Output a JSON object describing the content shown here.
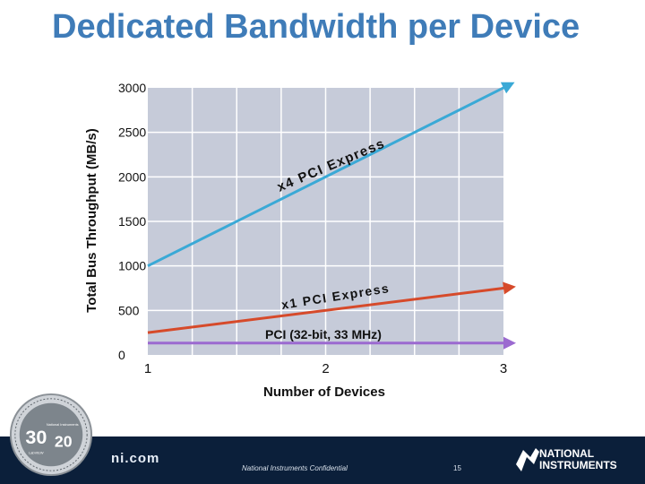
{
  "slide": {
    "title": "Dedicated Bandwidth per Device",
    "site": "ni.com",
    "confidential": "National Instruments Confidential",
    "page_number": "15"
  },
  "logo": {
    "line1": "NATIONAL",
    "line2": "INSTRUMENTS"
  },
  "seal": {
    "big_left": "30",
    "big_right": "20",
    "small_right": "National Instruments",
    "small_left": "LabVIEW"
  },
  "colors": {
    "title": "#3f7cb8",
    "plot_bg": "#c6cbd9",
    "grid": "#ffffff",
    "x4_series": "#3aa9d6",
    "x1_series": "#d64a2a",
    "pci_series": "#9b6ad0",
    "footer": "#0b1f3a"
  },
  "chart_data": {
    "type": "line",
    "title": "",
    "xlabel": "Number of Devices",
    "ylabel": "Total Bus Throughput (MB/s)",
    "x": [
      1,
      2,
      3
    ],
    "xlim": [
      1,
      3
    ],
    "ylim": [
      0,
      3000
    ],
    "x_ticks": [
      "1",
      "2",
      "3"
    ],
    "y_ticks": [
      "0",
      "500",
      "1000",
      "1500",
      "2000",
      "2500",
      "3000"
    ],
    "grid": true,
    "series": [
      {
        "name": "x4 PCI Express",
        "values": [
          1000,
          2000,
          3000
        ],
        "color": "#3aa9d6"
      },
      {
        "name": "x1 PCI Express",
        "values": [
          250,
          500,
          750
        ],
        "color": "#d64a2a"
      },
      {
        "name": "PCI (32-bit, 33 MHz)",
        "values": [
          133,
          133,
          133
        ],
        "color": "#9b6ad0"
      }
    ]
  }
}
